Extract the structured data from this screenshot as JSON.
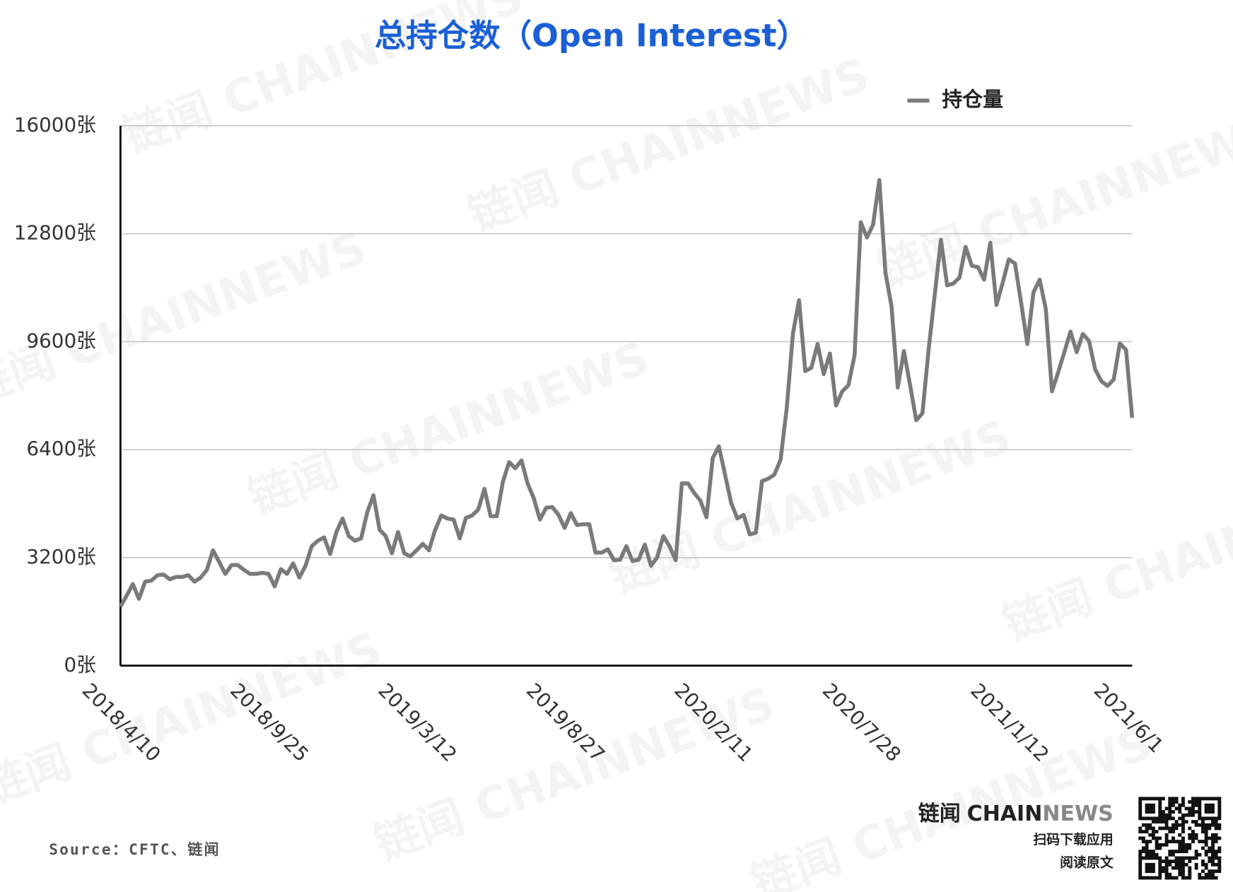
{
  "chart_data": {
    "type": "line",
    "title": "总持仓数（Open Interest）",
    "categories": [
      "2018/4/10",
      null,
      null,
      null,
      null,
      null,
      null,
      null,
      null,
      null,
      null,
      null,
      null,
      null,
      null,
      null,
      null,
      null,
      null,
      null,
      null,
      null,
      null,
      null,
      "2018/9/25",
      null,
      null,
      null,
      null,
      null,
      null,
      null,
      null,
      null,
      null,
      null,
      null,
      null,
      null,
      null,
      null,
      null,
      null,
      null,
      null,
      null,
      null,
      null,
      "2019/3/12",
      null,
      null,
      null,
      null,
      null,
      null,
      null,
      null,
      null,
      null,
      null,
      null,
      null,
      null,
      null,
      null,
      null,
      null,
      null,
      null,
      null,
      null,
      null,
      "2019/8/27",
      null,
      null,
      null,
      null,
      null,
      null,
      null,
      null,
      null,
      null,
      null,
      null,
      null,
      null,
      null,
      null,
      null,
      null,
      null,
      null,
      null,
      null,
      null,
      "2020/2/11",
      null,
      null,
      null,
      null,
      null,
      null,
      null,
      null,
      null,
      null,
      null,
      null,
      null,
      null,
      null,
      null,
      null,
      null,
      null,
      null,
      null,
      null,
      null,
      "2020/7/28",
      null,
      null,
      null,
      null,
      null,
      null,
      null,
      null,
      null,
      null,
      null,
      null,
      null,
      null,
      null,
      null,
      null,
      null,
      null,
      null,
      null,
      null,
      null,
      "2021/1/12",
      null,
      null,
      null,
      null,
      null,
      null,
      null,
      null,
      null,
      null,
      null,
      null,
      null,
      null,
      null,
      null,
      null,
      null,
      null,
      "2021/6/1"
    ],
    "series": [
      {
        "name": "持仓量",
        "color": "#7a7a7a",
        "values": [
          1750,
          2070,
          2420,
          1980,
          2490,
          2520,
          2680,
          2700,
          2560,
          2630,
          2630,
          2680,
          2490,
          2610,
          2840,
          3420,
          3070,
          2720,
          2980,
          2980,
          2840,
          2720,
          2720,
          2750,
          2720,
          2350,
          2860,
          2720,
          3030,
          2610,
          2960,
          3540,
          3700,
          3800,
          3310,
          3960,
          4360,
          3840,
          3700,
          3770,
          4540,
          5050,
          4030,
          3840,
          3330,
          3960,
          3330,
          3240,
          3420,
          3610,
          3420,
          4010,
          4450,
          4360,
          4330,
          3770,
          4380,
          4450,
          4630,
          5240,
          4430,
          4430,
          5450,
          6030,
          5850,
          6080,
          5400,
          4960,
          4330,
          4680,
          4700,
          4470,
          4080,
          4520,
          4170,
          4190,
          4190,
          3350,
          3350,
          3450,
          3120,
          3140,
          3540,
          3100,
          3140,
          3590,
          2960,
          3210,
          3840,
          3540,
          3120,
          5400,
          5400,
          5120,
          4890,
          4400,
          6150,
          6500,
          5660,
          4820,
          4360,
          4470,
          3890,
          3940,
          5470,
          5540,
          5660,
          6100,
          7620,
          9830,
          10830,
          8730,
          8830,
          9530,
          8640,
          9250,
          7710,
          8130,
          8310,
          9200,
          13140,
          12690,
          13070,
          14390,
          11650,
          10640,
          8240,
          9320,
          8310,
          7270,
          7480,
          9360,
          11000,
          12620,
          11270,
          11320,
          11500,
          12410,
          11850,
          11810,
          11440,
          12530,
          10690,
          11340,
          12040,
          11920,
          10760,
          9530,
          11060,
          11440,
          10570,
          8130,
          8690,
          9290,
          9900,
          9290,
          9830,
          9620,
          8780,
          8430,
          8290,
          8480,
          9550,
          9360,
          7340
        ]
      }
    ],
    "ylim": [
      0,
      16000
    ],
    "yticks": [
      {
        "value": 0,
        "label": "0张"
      },
      {
        "value": 3200,
        "label": "3200张"
      },
      {
        "value": 6400,
        "label": "6400张"
      },
      {
        "value": 9600,
        "label": "9600张"
      },
      {
        "value": 12800,
        "label": "12800张"
      },
      {
        "value": 16000,
        "label": "16000张"
      }
    ],
    "grid": true,
    "legend": "top-right",
    "source": "Source：CFTC、链闻"
  },
  "watermark": "链闻 CHAINNEWS",
  "logo": {
    "brand_cn": "链闻",
    "brand_a": "CHAIN",
    "brand_b": "NEWS",
    "line1": "扫码下载应用",
    "line2": "阅读原文"
  }
}
